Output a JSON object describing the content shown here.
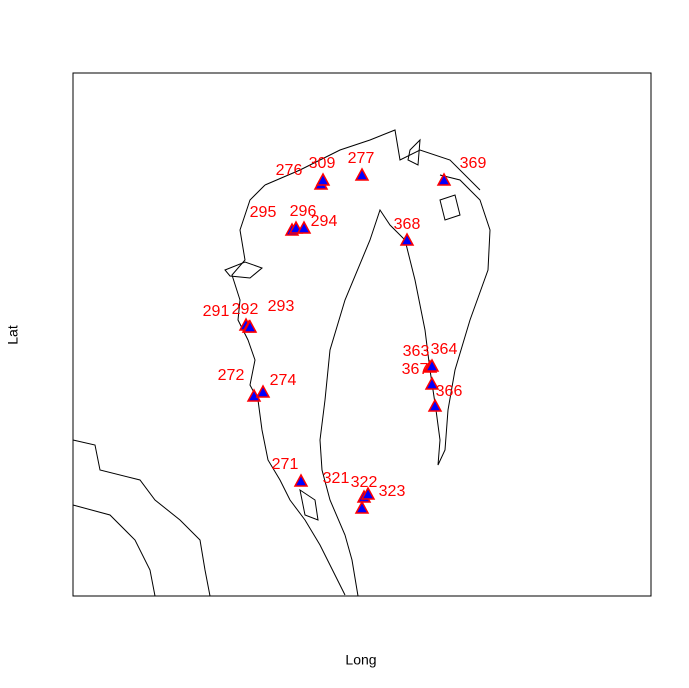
{
  "x_label": "Long",
  "y_label": "Lat",
  "stations": [
    "276",
    "309",
    "277",
    "369",
    "295",
    "296",
    "294",
    "368",
    "291",
    "292",
    "293",
    "363",
    "364",
    "367",
    "366",
    "272",
    "274",
    "271",
    "321",
    "322",
    "323"
  ]
}
